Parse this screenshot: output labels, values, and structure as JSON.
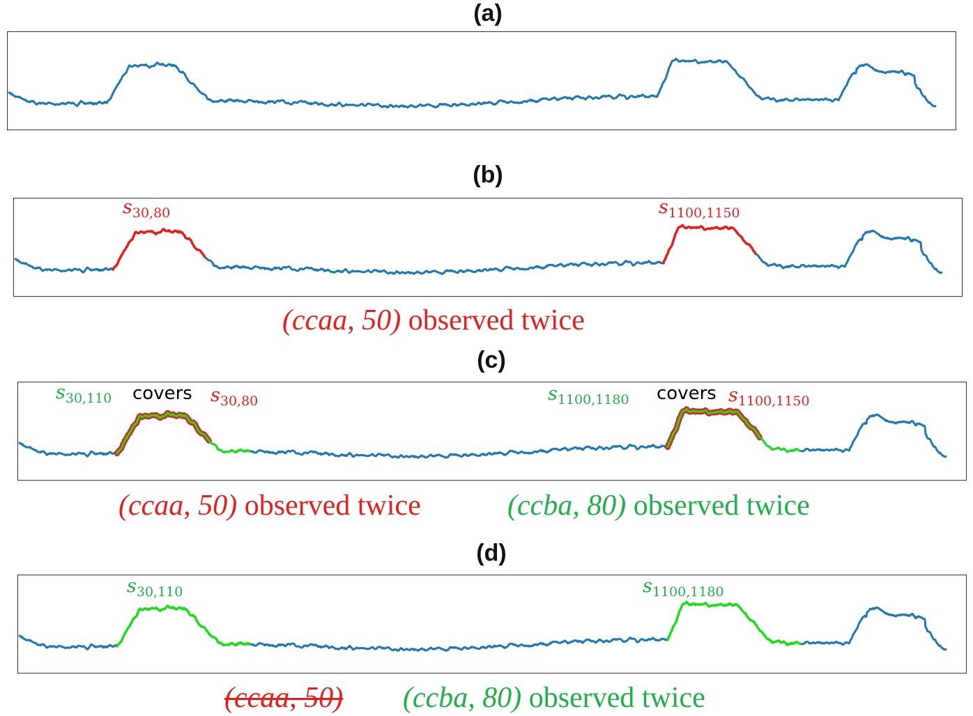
{
  "panels": [
    {
      "id": "a",
      "title": "(a)"
    },
    {
      "id": "b",
      "title": "(b)"
    },
    {
      "id": "c",
      "title": "(c)"
    },
    {
      "id": "d",
      "title": "(d)"
    }
  ],
  "labels": {
    "s_symbol": "s",
    "s30_80_sub": "30,80",
    "s1100_1150_sub": "1100,1150",
    "s30_110_sub": "30,110",
    "s1100_1180_sub": "1100,1180",
    "covers": "covers"
  },
  "captions": {
    "ccaa_math": "(ccaa, 50)",
    "ccba_math": "(ccba, 80)",
    "observed_twice": "observed twice"
  },
  "colors": {
    "series": "#1f77b4",
    "short_motif": "#e4201f",
    "long_motif": "#1fdc1f",
    "green_text": "#1fb04a"
  }
}
